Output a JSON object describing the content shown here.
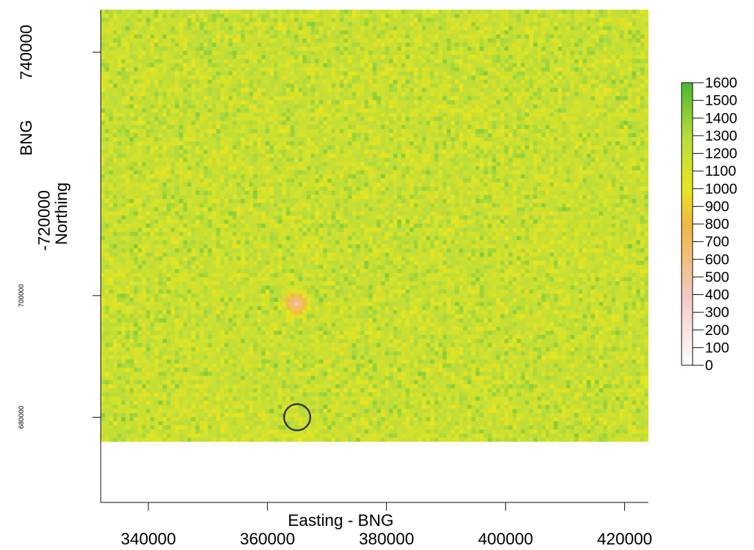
{
  "chart_data": {
    "type": "heatmap",
    "title": "",
    "xlabel": "Easting - BNG",
    "ylabel": "Northing",
    "ylabel_extra": [
      "BNG",
      "-720000"
    ],
    "x_ticks": [
      340000,
      360000,
      380000,
      400000,
      420000
    ],
    "y_ticks_main": [
      740000
    ],
    "y_ticks_small": [
      700000,
      680000
    ],
    "xlim": [
      332000,
      424000
    ],
    "ylim": [
      666000,
      747000
    ],
    "raster_extent": {
      "x": [
        332000,
        424000
      ],
      "y": [
        676000,
        747000
      ]
    },
    "value_range": [
      0,
      1600
    ],
    "typical_value_range": [
      900,
      1500
    ],
    "hotspot": {
      "x": 365000,
      "y": 698500,
      "value": 450
    },
    "marker": {
      "type": "circle",
      "x": 365000,
      "y": 680000
    },
    "colorbar": {
      "ticks": [
        1600,
        1500,
        1400,
        1300,
        1200,
        1100,
        1000,
        900,
        800,
        700,
        600,
        500,
        400,
        300,
        200,
        100,
        0
      ],
      "colors": {
        "0": "#ffffff",
        "400": "#f2c8c0",
        "800": "#f0b840",
        "1000": "#e8e620",
        "1300": "#b8dc3c",
        "1600": "#4cb830"
      }
    }
  }
}
